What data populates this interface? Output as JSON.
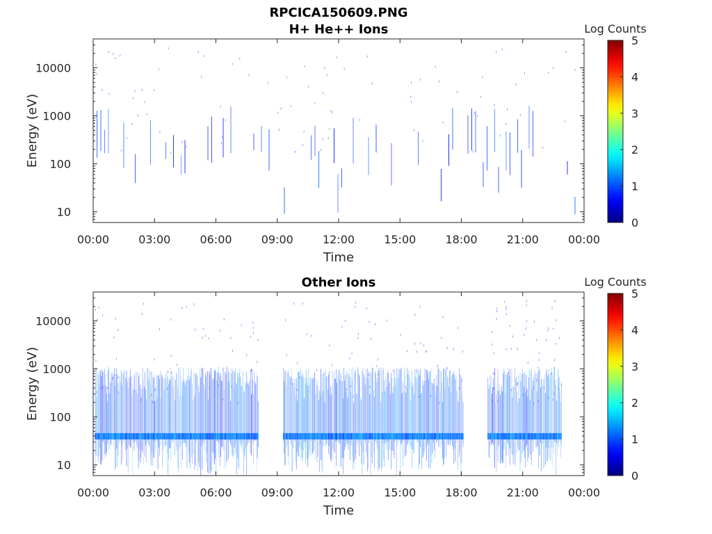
{
  "figure": {
    "title": "RPCICA150609.PNG"
  },
  "chart_data": [
    {
      "type": "heatmap",
      "title": "H+ He++ Ions",
      "xlabel": "Time",
      "ylabel": "Energy (eV)",
      "x_ticks": [
        "00:00",
        "03:00",
        "06:00",
        "09:00",
        "12:00",
        "15:00",
        "18:00",
        "21:00",
        "00:00"
      ],
      "xlim_hours": [
        0,
        24
      ],
      "y_ticks": [
        "10",
        "100",
        "1000",
        "10000"
      ],
      "ylim": [
        6,
        40000
      ],
      "yscale": "log",
      "colorbar": {
        "label": "Log Counts",
        "ticks": [
          "0",
          "1",
          "2",
          "3",
          "4",
          "5"
        ],
        "range": [
          0,
          5
        ],
        "colormap": "jet"
      },
      "activity_intervals_hours": [
        [
          0.0,
          24.0
        ]
      ],
      "activity_level": "sparse"
    },
    {
      "type": "heatmap",
      "title": "Other Ions",
      "xlabel": "Time",
      "ylabel": "Energy (eV)",
      "x_ticks": [
        "00:00",
        "03:00",
        "06:00",
        "09:00",
        "12:00",
        "15:00",
        "18:00",
        "21:00",
        "00:00"
      ],
      "xlim_hours": [
        0,
        24
      ],
      "y_ticks": [
        "10",
        "100",
        "1000",
        "10000"
      ],
      "ylim": [
        6,
        40000
      ],
      "yscale": "log",
      "colorbar": {
        "label": "Log Counts",
        "ticks": [
          "0",
          "1",
          "2",
          "3",
          "4",
          "5"
        ],
        "range": [
          0,
          5
        ],
        "colormap": "jet"
      },
      "activity_intervals_hours": [
        [
          0.1,
          8.1
        ],
        [
          9.3,
          18.1
        ],
        [
          19.3,
          22.9
        ]
      ],
      "activity_level": "dense",
      "peak_energy_band_eV": 40
    }
  ]
}
